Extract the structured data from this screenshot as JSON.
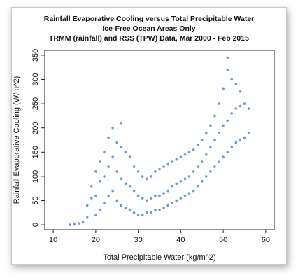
{
  "chart_data": {
    "type": "scatter",
    "title": "Rainfall Evaporative Cooling versus Total Precipitable Water",
    "subtitle": "Ice-Free Ocean Areas Only",
    "subtitle2": "TRMM (rainfall) and RSS (TPW) Data, Mar 2000 - Feb 2015",
    "xlabel": "Total Precipitable Water (kg/m^2)",
    "ylabel": "Rainfall Evaporative Cooling (W/m^2)",
    "xlim": [
      8,
      62
    ],
    "ylim": [
      -10,
      360
    ],
    "xticks": [
      10,
      20,
      30,
      40,
      50,
      60
    ],
    "yticks": [
      0,
      50,
      100,
      150,
      200,
      250,
      300,
      350
    ],
    "point_color": "#3a74d6",
    "series": [
      {
        "values": [
          [
            14,
            0
          ],
          [
            15,
            1
          ],
          [
            16,
            3
          ],
          [
            17,
            6
          ],
          [
            18,
            15
          ],
          [
            18,
            40
          ],
          [
            19,
            55
          ],
          [
            19,
            80
          ],
          [
            20,
            20
          ],
          [
            20,
            60
          ],
          [
            20,
            110
          ],
          [
            21,
            30
          ],
          [
            21,
            90
          ],
          [
            21,
            130
          ],
          [
            22,
            45
          ],
          [
            22,
            100
          ],
          [
            22,
            150
          ],
          [
            23,
            60
          ],
          [
            23,
            120
          ],
          [
            23,
            180
          ],
          [
            24,
            70
          ],
          [
            24,
            140
          ],
          [
            24,
            200
          ],
          [
            25,
            50
          ],
          [
            25,
            110
          ],
          [
            25,
            170
          ],
          [
            26,
            40
          ],
          [
            26,
            95
          ],
          [
            26,
            160
          ],
          [
            26,
            210
          ],
          [
            27,
            35
          ],
          [
            27,
            85
          ],
          [
            27,
            150
          ],
          [
            28,
            30
          ],
          [
            28,
            80
          ],
          [
            28,
            140
          ],
          [
            29,
            25
          ],
          [
            29,
            70
          ],
          [
            29,
            120
          ],
          [
            30,
            20
          ],
          [
            30,
            60
          ],
          [
            30,
            110
          ],
          [
            31,
            20
          ],
          [
            31,
            55
          ],
          [
            31,
            100
          ],
          [
            32,
            25
          ],
          [
            32,
            50
          ],
          [
            32,
            95
          ],
          [
            33,
            25
          ],
          [
            33,
            55
          ],
          [
            33,
            100
          ],
          [
            34,
            30
          ],
          [
            34,
            60
          ],
          [
            34,
            110
          ],
          [
            35,
            30
          ],
          [
            35,
            60
          ],
          [
            35,
            115
          ],
          [
            36,
            35
          ],
          [
            36,
            65
          ],
          [
            36,
            120
          ],
          [
            37,
            40
          ],
          [
            37,
            70
          ],
          [
            37,
            125
          ],
          [
            38,
            45
          ],
          [
            38,
            80
          ],
          [
            38,
            130
          ],
          [
            39,
            50
          ],
          [
            39,
            85
          ],
          [
            39,
            135
          ],
          [
            40,
            55
          ],
          [
            40,
            90
          ],
          [
            40,
            140
          ],
          [
            41,
            60
          ],
          [
            41,
            95
          ],
          [
            41,
            145
          ],
          [
            42,
            65
          ],
          [
            42,
            100
          ],
          [
            42,
            150
          ],
          [
            43,
            70
          ],
          [
            43,
            110
          ],
          [
            43,
            155
          ],
          [
            44,
            80
          ],
          [
            44,
            120
          ],
          [
            44,
            165
          ],
          [
            45,
            90
          ],
          [
            45,
            130
          ],
          [
            45,
            175
          ],
          [
            46,
            100
          ],
          [
            46,
            145
          ],
          [
            46,
            190
          ],
          [
            47,
            110
          ],
          [
            47,
            160
          ],
          [
            47,
            205
          ],
          [
            48,
            120
          ],
          [
            48,
            175
          ],
          [
            48,
            225
          ],
          [
            49,
            130
          ],
          [
            49,
            190
          ],
          [
            49,
            250
          ],
          [
            50,
            140
          ],
          [
            50,
            205
          ],
          [
            50,
            280
          ],
          [
            51,
            150
          ],
          [
            51,
            215
          ],
          [
            51,
            320
          ],
          [
            51,
            345
          ],
          [
            52,
            160
          ],
          [
            52,
            230
          ],
          [
            52,
            300
          ],
          [
            53,
            170
          ],
          [
            53,
            240
          ],
          [
            53,
            290
          ],
          [
            54,
            175
          ],
          [
            54,
            245
          ],
          [
            54,
            275
          ],
          [
            55,
            180
          ],
          [
            55,
            250
          ],
          [
            56,
            190
          ],
          [
            56,
            240
          ]
        ]
      }
    ]
  }
}
